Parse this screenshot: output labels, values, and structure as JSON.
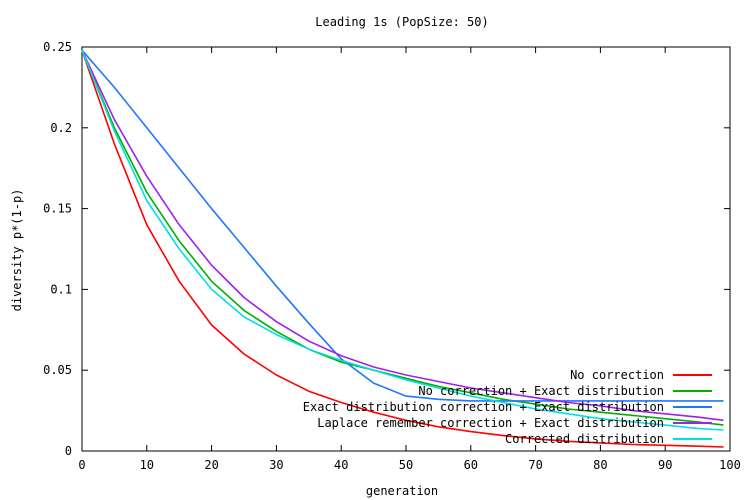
{
  "chart_data": {
    "type": "line",
    "title": "Leading 1s (PopSize: 50)",
    "xlabel": "generation",
    "ylabel": "diversity p*(1-p)",
    "xlim": [
      0,
      100
    ],
    "ylim": [
      0,
      0.25
    ],
    "xticks": [
      0,
      10,
      20,
      30,
      40,
      50,
      60,
      70,
      80,
      90,
      100
    ],
    "yticks": [
      0,
      0.05,
      0.1,
      0.15,
      0.2,
      0.25
    ],
    "ytick_labels": [
      "0",
      "0.05",
      "0.1",
      "0.15",
      "0.2",
      "0.25"
    ],
    "grid": false,
    "legend_position": "bottom-right",
    "x": [
      0,
      5,
      10,
      15,
      20,
      25,
      30,
      35,
      40,
      45,
      50,
      55,
      60,
      65,
      70,
      75,
      80,
      85,
      90,
      95,
      99
    ],
    "series": [
      {
        "name": "No correction",
        "color": "#ff0000",
        "values": [
          0.248,
          0.19,
          0.14,
          0.105,
          0.078,
          0.06,
          0.047,
          0.037,
          0.03,
          0.024,
          0.019,
          0.015,
          0.012,
          0.0095,
          0.0075,
          0.006,
          0.005,
          0.004,
          0.0035,
          0.003,
          0.0025
        ]
      },
      {
        "name": "No correction + Exact distribution",
        "color": "#00b000",
        "values": [
          0.248,
          0.2,
          0.16,
          0.13,
          0.105,
          0.087,
          0.074,
          0.063,
          0.055,
          0.05,
          0.045,
          0.04,
          0.036,
          0.032,
          0.029,
          0.026,
          0.024,
          0.022,
          0.02,
          0.018,
          0.016
        ]
      },
      {
        "name": "Exact distribution correction + Exact distribution",
        "color": "#1f77ff",
        "values": [
          0.248,
          0.225,
          0.2,
          0.175,
          0.15,
          0.126,
          0.102,
          0.079,
          0.057,
          0.042,
          0.034,
          0.032,
          0.031,
          0.031,
          0.031,
          0.031,
          0.031,
          0.031,
          0.031,
          0.031,
          0.031
        ]
      },
      {
        "name": "Laplace remember correction + Exact distribution",
        "color": "#a020f0",
        "values": [
          0.248,
          0.205,
          0.17,
          0.14,
          0.115,
          0.095,
          0.08,
          0.068,
          0.059,
          0.052,
          0.047,
          0.043,
          0.039,
          0.036,
          0.033,
          0.03,
          0.028,
          0.025,
          0.023,
          0.021,
          0.019
        ]
      },
      {
        "name": "Corrected distribution",
        "color": "#00e0e0",
        "values": [
          0.248,
          0.198,
          0.155,
          0.125,
          0.1,
          0.083,
          0.072,
          0.063,
          0.056,
          0.05,
          0.044,
          0.039,
          0.034,
          0.03,
          0.026,
          0.023,
          0.02,
          0.018,
          0.016,
          0.014,
          0.013
        ]
      }
    ]
  }
}
